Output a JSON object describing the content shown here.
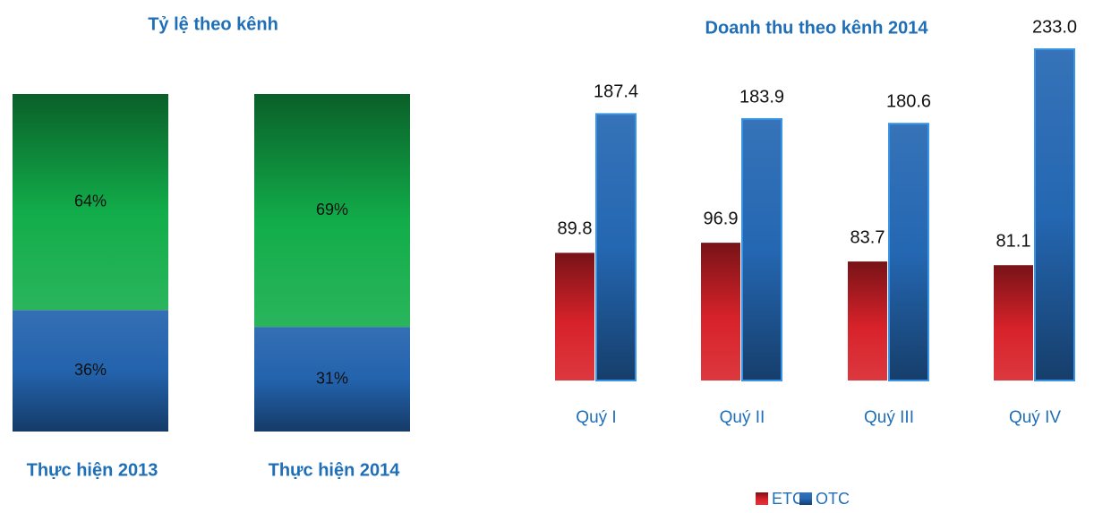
{
  "chart_data": [
    {
      "type": "stacked_bar_100",
      "title": "Tỷ lệ theo kênh",
      "categories": [
        "Thực hiện 2013",
        "Thực hiện 2014"
      ],
      "series": [
        {
          "color": "#2363ad",
          "values": [
            36,
            31
          ],
          "value_labels": [
            "36%",
            "31%"
          ]
        },
        {
          "color": "#12ad4a",
          "values": [
            64,
            69
          ],
          "value_labels": [
            "64%",
            "69%"
          ]
        }
      ]
    },
    {
      "type": "bar",
      "title": "Doanh thu theo kênh 2014",
      "categories": [
        "Quý I",
        "Quý II",
        "Quý III",
        "Quý IV"
      ],
      "series": [
        {
          "name": "ETC",
          "color": "#d8222a",
          "values": [
            89.8,
            96.9,
            83.7,
            81.1
          ]
        },
        {
          "name": "OTC",
          "color": "#2467b2",
          "values": [
            187.4,
            183.9,
            180.6,
            233
          ],
          "value_labels": [
            "187.4",
            "183.9",
            "180.6",
            "233.0"
          ]
        }
      ],
      "legend": "bottom"
    }
  ]
}
